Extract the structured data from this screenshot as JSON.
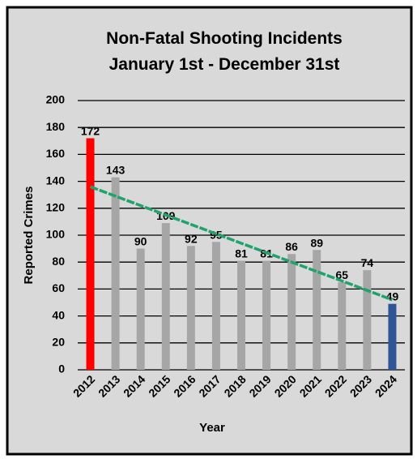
{
  "chart_data": {
    "type": "bar",
    "title": [
      "Non-Fatal Shooting Incidents",
      "January 1st - December 31st"
    ],
    "x_label": "Year",
    "y_label": "Reported Crimes",
    "categories": [
      "2012",
      "2013",
      "2014",
      "2015",
      "2016",
      "2017",
      "2018",
      "2019",
      "2020",
      "2021",
      "2022",
      "2023",
      "2024"
    ],
    "values": [
      172,
      143,
      90,
      109,
      92,
      95,
      81,
      81,
      86,
      89,
      65,
      74,
      49
    ],
    "colors": [
      "#ff0000",
      "#a6a6a6",
      "#a6a6a6",
      "#a6a6a6",
      "#a6a6a6",
      "#a6a6a6",
      "#a6a6a6",
      "#a6a6a6",
      "#a6a6a6",
      "#a6a6a6",
      "#a6a6a6",
      "#a6a6a6",
      "#2f5597"
    ],
    "trendline": {
      "color": "#1fa36a",
      "values": [
        136,
        52
      ]
    },
    "ylim": [
      0,
      200
    ],
    "yticks": [
      0,
      20,
      40,
      60,
      80,
      100,
      120,
      140,
      160,
      180,
      200
    ],
    "grid": true
  }
}
